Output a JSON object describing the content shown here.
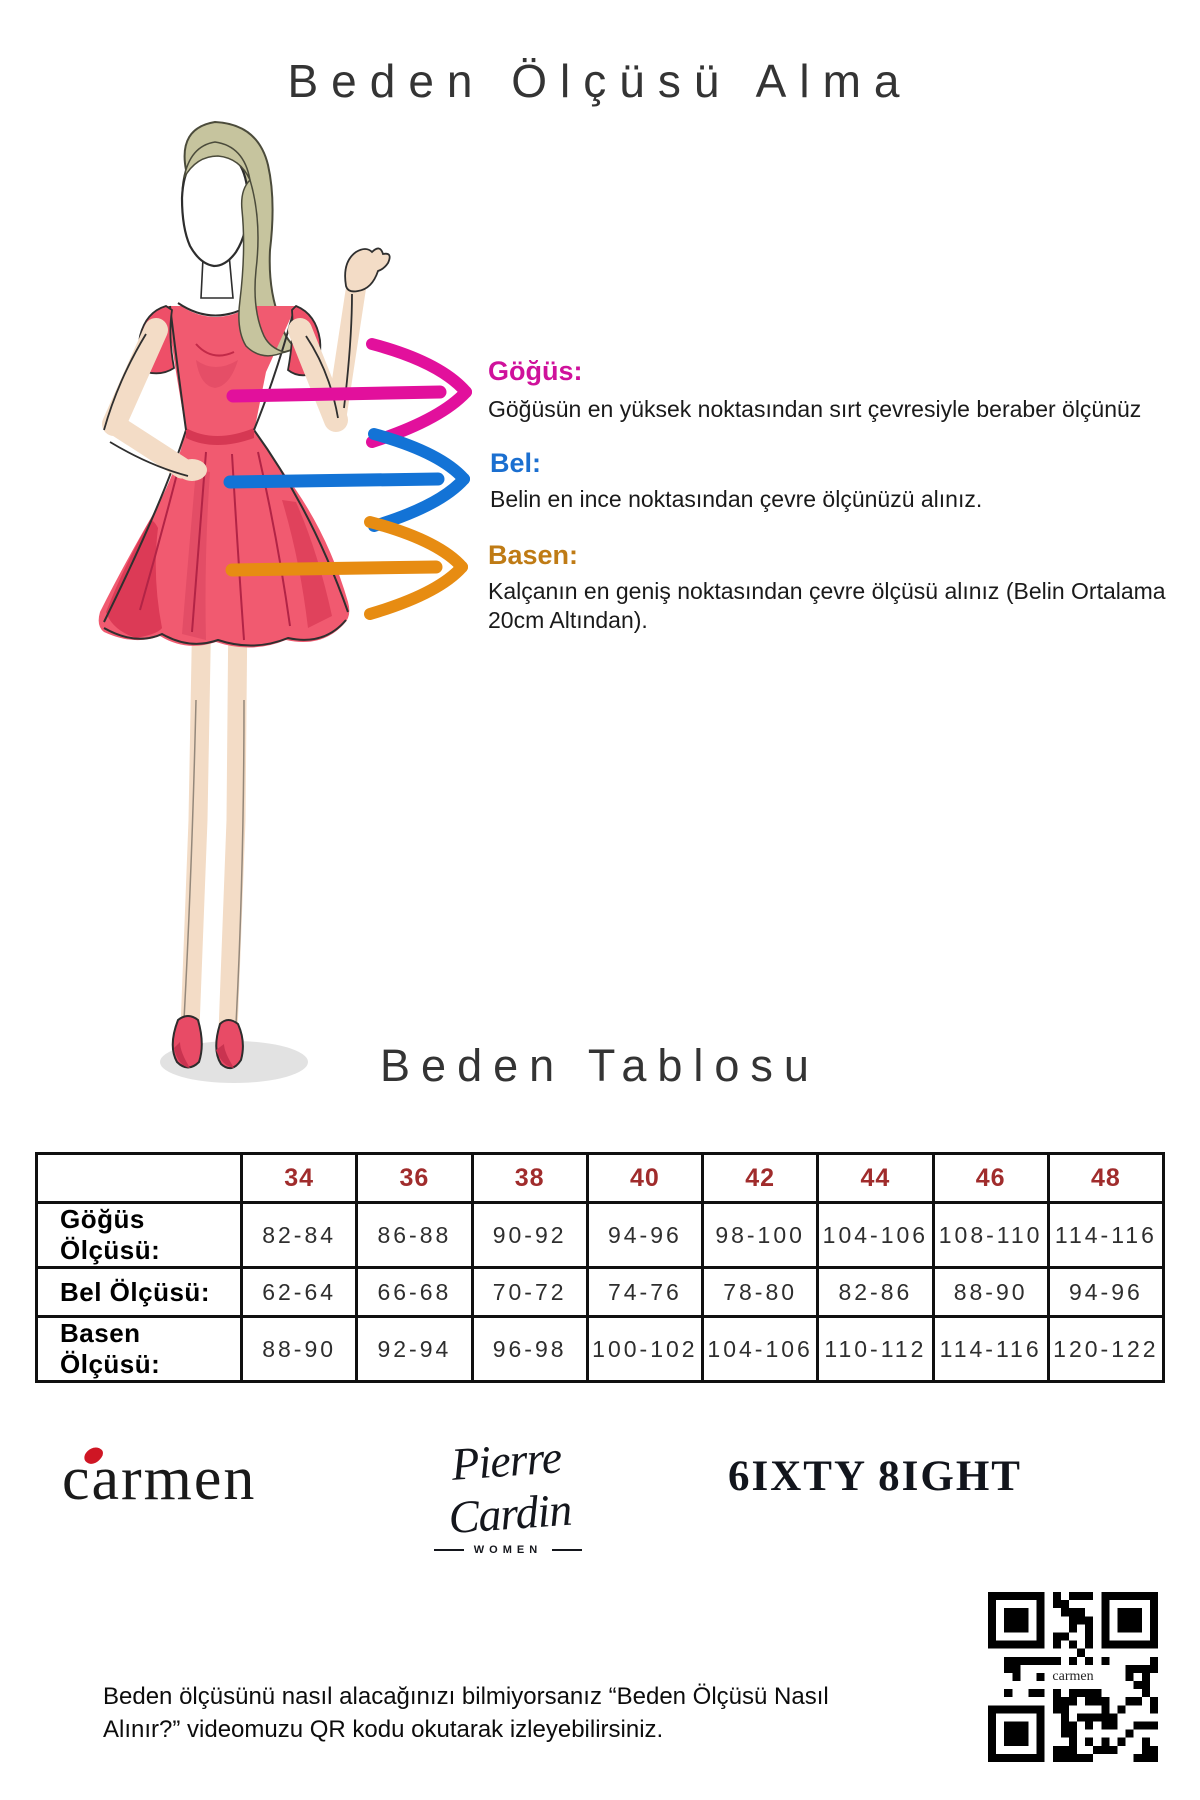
{
  "page": {
    "title": "Beden Ölçüsü Alma",
    "table_title": "Beden Tablosu"
  },
  "measurements": [
    {
      "label": "Göğüs:",
      "description": "Göğüsün en yüksek noktasından sırt çevresiyle beraber ölçünüz",
      "label_color": "#cf119b",
      "arrow_color": "#e2109c"
    },
    {
      "label": "Bel:",
      "description": "Belin en ince noktasından çevre ölçünüzü alınız.",
      "label_color": "#1b6fd0",
      "arrow_color": "#1373d6"
    },
    {
      "label": "Basen:",
      "description": "Kalçanın en geniş noktasından çevre ölçüsü alınız (Belin Ortalama 20cm Altından).",
      "label_color": "#bf7b15",
      "arrow_color": "#e78c12"
    }
  ],
  "size_table": {
    "sizes": [
      "34",
      "36",
      "38",
      "40",
      "42",
      "44",
      "46",
      "48"
    ],
    "rows": [
      {
        "label": "Göğüs Ölçüsü:",
        "values": [
          "82-84",
          "86-88",
          "90-92",
          "94-96",
          "98-100",
          "104-106",
          "108-110",
          "114-116"
        ]
      },
      {
        "label": "Bel Ölçüsü:",
        "values": [
          "62-64",
          "66-68",
          "70-72",
          "74-76",
          "78-80",
          "82-86",
          "88-90",
          "94-96"
        ]
      },
      {
        "label": "Basen Ölçüsü:",
        "values": [
          "88-90",
          "92-94",
          "96-98",
          "100-102",
          "104-106",
          "110-112",
          "114-116",
          "120-122"
        ]
      }
    ],
    "size_header_color": "#a02c2c"
  },
  "brands": [
    {
      "name": "carmen"
    },
    {
      "name": "Pierre Cardin",
      "sub": "WOMEN"
    },
    {
      "name": "6IXTY 8IGHT"
    }
  ],
  "qr": {
    "center_label": "carmen"
  },
  "footer_note": "Beden ölçüsünü nasıl alacağınızı bilmiyorsanız “Beden Ölçüsü Nasıl Alınır?” videomuzu QR kodu okutarak izleyebilirsiniz.",
  "colors": {
    "dress_pink": "#f15a70",
    "dress_shade": "#dc3a56",
    "skin": "#f3dcc6",
    "hair": "#c6c49e"
  }
}
